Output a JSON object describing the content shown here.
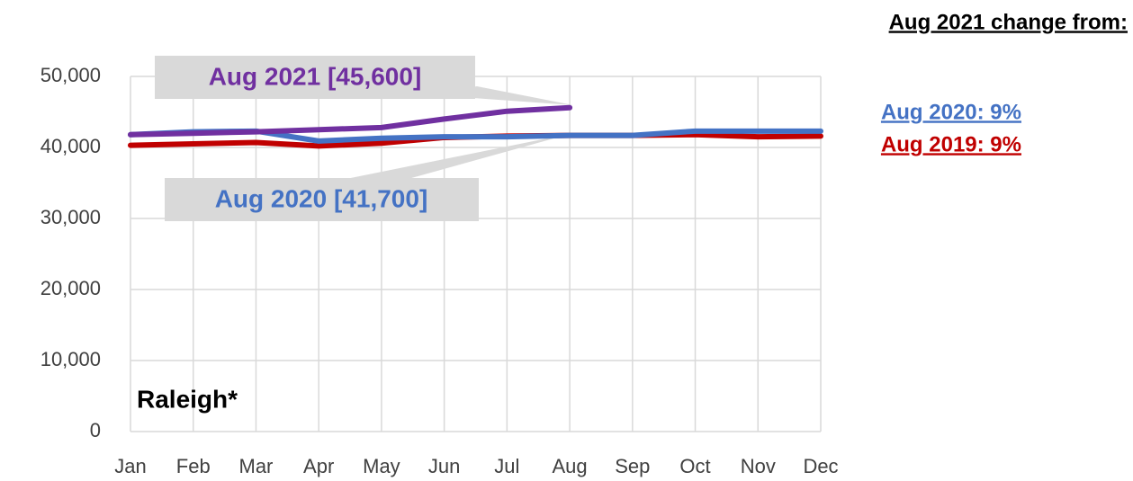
{
  "chart_data": {
    "type": "line",
    "categories": [
      "Jan",
      "Feb",
      "Mar",
      "Apr",
      "May",
      "Jun",
      "Jul",
      "Aug",
      "Sep",
      "Oct",
      "Nov",
      "Dec"
    ],
    "series": [
      {
        "name": "2019",
        "color": "#c00000",
        "values": [
          40300,
          40500,
          40700,
          40200,
          40600,
          41400,
          41600,
          41700,
          41700,
          41800,
          41500,
          41600
        ]
      },
      {
        "name": "2020",
        "color": "#4472c4",
        "values": [
          41800,
          42200,
          42300,
          40900,
          41300,
          41500,
          41500,
          41700,
          41700,
          42300,
          42300,
          42300
        ]
      },
      {
        "name": "2021",
        "color": "#7030a0",
        "values": [
          41800,
          42000,
          42200,
          42500,
          42800,
          44000,
          45100,
          45600,
          null,
          null,
          null,
          null
        ]
      }
    ],
    "ylim": [
      0,
      50000
    ],
    "yticks": [
      0,
      {
        "value": 10000,
        "label": "10,000"
      },
      {
        "value": 20000,
        "label": "20,000"
      },
      {
        "value": 30000,
        "label": "30,000"
      },
      {
        "value": 40000,
        "label": "40,000"
      },
      {
        "value": 50000,
        "label": "50,000"
      }
    ],
    "grid": true,
    "callouts": [
      {
        "text": "Aug 2021 [45,600]",
        "color": "#7030a0"
      },
      {
        "text": "Aug 2020 [41,700]",
        "color": "#4472c4"
      }
    ],
    "location": "Raleigh*",
    "change_title": "Aug 2021 change from:",
    "changes": [
      {
        "text": "Aug 2020: 9%",
        "color": "#4472c4"
      },
      {
        "text": "Aug 2019: 9%",
        "color": "#c00000"
      }
    ]
  }
}
